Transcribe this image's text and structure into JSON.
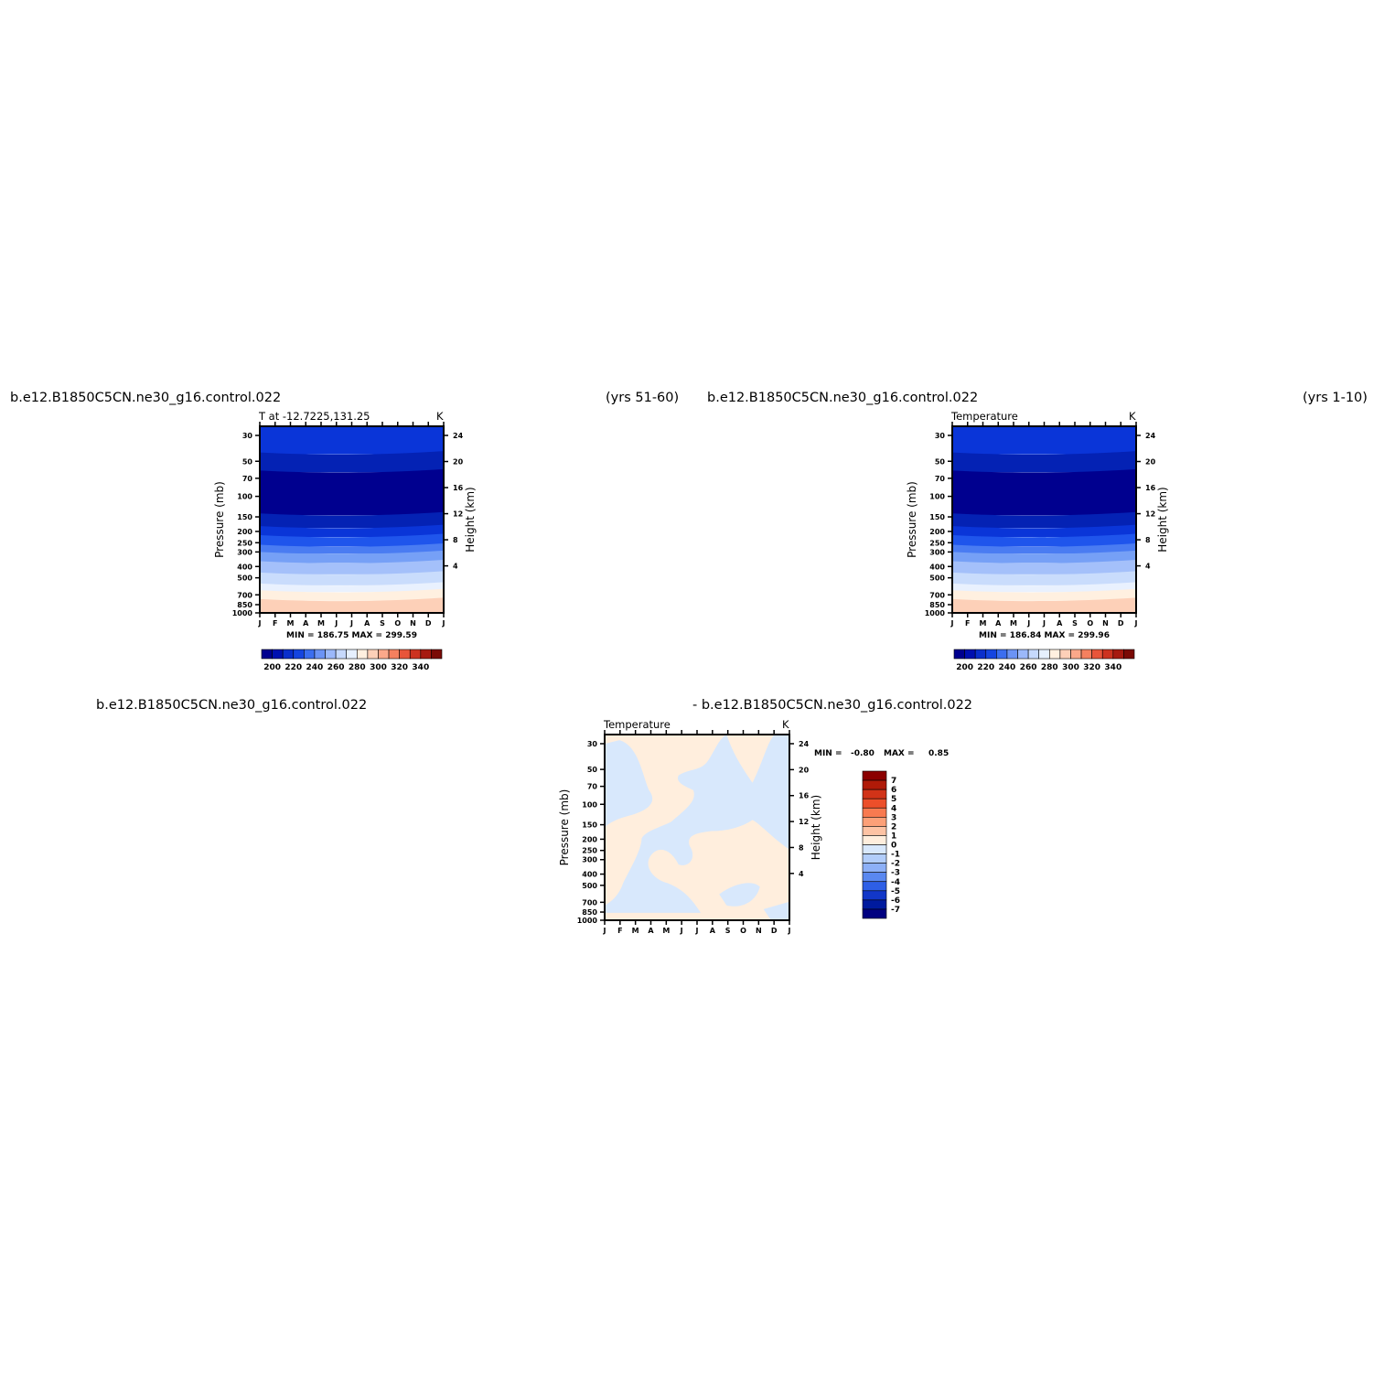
{
  "panels": {
    "left": {
      "case_title": "b.e12.B1850C5CN.ne30_g16.control.022",
      "years": "(yrs 51-60)",
      "subtitle": "T at -12.7225,131.25",
      "units": "K",
      "minmax": "MIN = 186.75 MAX = 299.59"
    },
    "right": {
      "case_title": "b.e12.B1850C5CN.ne30_g16.control.022",
      "years": "(yrs 1-10)",
      "subtitle": "Temperature",
      "units": "K",
      "minmax": "MIN = 186.84 MAX = 299.96"
    },
    "diff": {
      "case_title_left": "b.e12.B1850C5CN.ne30_g16.control.022",
      "case_title_right": "- b.e12.B1850C5CN.ne30_g16.control.022",
      "subtitle": "Temperature",
      "units": "K",
      "min_label": "MIN =",
      "min_value": "-0.80",
      "max_label": "MAX =",
      "max_value": "0.85"
    }
  },
  "chart_data": [
    {
      "type": "heatmap",
      "title": "T at -12.7225,131.25",
      "units": "K",
      "xlabel": "",
      "ylabel": "Pressure (mb)",
      "y2label": "Height (km)",
      "x_ticks": [
        "J",
        "F",
        "M",
        "A",
        "M",
        "J",
        "J",
        "A",
        "S",
        "O",
        "N",
        "D",
        "J"
      ],
      "y_ticks": [
        30,
        50,
        70,
        100,
        150,
        200,
        250,
        300,
        400,
        500,
        700,
        850,
        1000
      ],
      "y_scale": "log",
      "y2_ticks": [
        24,
        20,
        16,
        12,
        8,
        4
      ],
      "min": 186.75,
      "max": 299.59,
      "colorbar_labels": [
        200,
        220,
        240,
        260,
        280,
        300,
        320,
        340
      ],
      "colorbar_levels": [
        190,
        200,
        210,
        220,
        230,
        240,
        250,
        260,
        270,
        280,
        290,
        300,
        310,
        320,
        330,
        340,
        350
      ],
      "colorbar_colors": [
        "#00008f",
        "#0010b0",
        "#0a2fcc",
        "#1545e0",
        "#3b6ef0",
        "#6b93f5",
        "#9bb8fa",
        "#c6d9fc",
        "#e6f0fe",
        "#fff0e0",
        "#fdd0b8",
        "#fba88a",
        "#f5805f",
        "#e8553a",
        "#cc3320",
        "#a61a10",
        "#7a0a05"
      ]
    },
    {
      "type": "heatmap",
      "title": "Temperature",
      "units": "K",
      "ylabel": "Pressure (mb)",
      "y2label": "Height (km)",
      "x_ticks": [
        "J",
        "F",
        "M",
        "A",
        "M",
        "J",
        "J",
        "A",
        "S",
        "O",
        "N",
        "D",
        "J"
      ],
      "y_ticks": [
        30,
        50,
        70,
        100,
        150,
        200,
        250,
        300,
        400,
        500,
        700,
        850,
        1000
      ],
      "y_scale": "log",
      "y2_ticks": [
        24,
        20,
        16,
        12,
        8,
        4
      ],
      "min": 186.84,
      "max": 299.96,
      "colorbar_labels": [
        200,
        220,
        240,
        260,
        280,
        300,
        320,
        340
      ]
    },
    {
      "type": "heatmap",
      "title": "Temperature",
      "units": "K",
      "ylabel": "Pressure (mb)",
      "y2label": "Height (km)",
      "x_ticks": [
        "J",
        "F",
        "M",
        "A",
        "M",
        "J",
        "J",
        "A",
        "S",
        "O",
        "N",
        "D",
        "J"
      ],
      "y_ticks": [
        30,
        50,
        70,
        100,
        150,
        200,
        250,
        300,
        400,
        500,
        700,
        850,
        1000
      ],
      "y_scale": "log",
      "y2_ticks": [
        24,
        20,
        16,
        12,
        8,
        4
      ],
      "min": -0.8,
      "max": 0.85,
      "colorbar_labels": [
        7,
        6,
        5,
        4,
        3,
        2,
        1,
        0,
        -1,
        -2,
        -3,
        -4,
        -5,
        -6,
        -7
      ],
      "colorbar_colors": [
        "#8b0000",
        "#b01a08",
        "#d13318",
        "#ec4f2a",
        "#f87a50",
        "#fca078",
        "#fdc3a4",
        "#ffeedd",
        "#d8e8fc",
        "#b2cdfa",
        "#8db0f7",
        "#5a88f0",
        "#2e5fe6",
        "#1237c8",
        "#001a9e",
        "#000080"
      ]
    }
  ]
}
